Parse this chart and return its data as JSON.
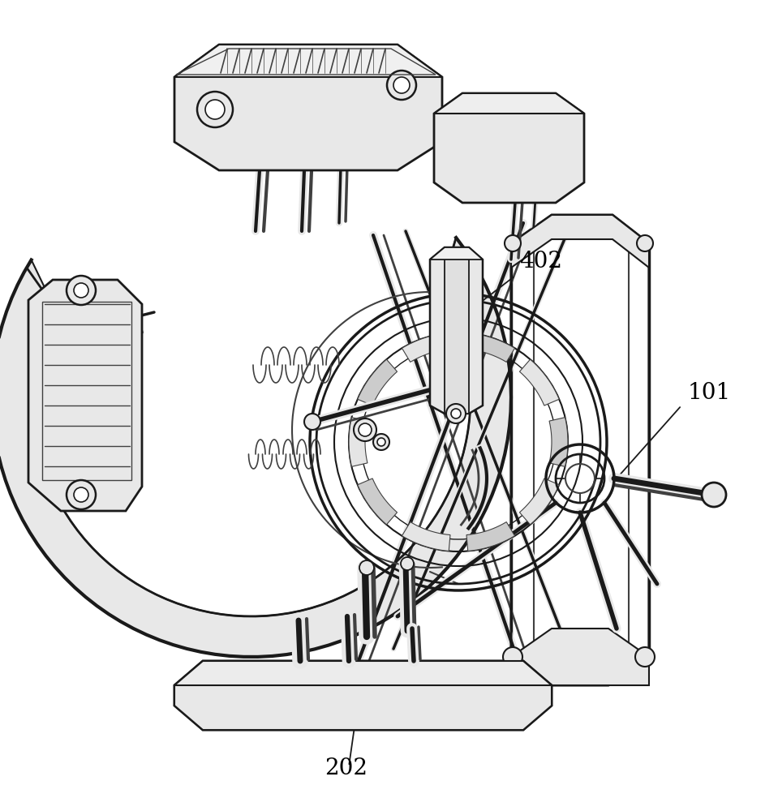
{
  "background_color": "#ffffff",
  "line_color": "#1a1a1a",
  "light_gray": "#d8d8d8",
  "mid_gray": "#b0b0b0",
  "dark_gray": "#404040",
  "shade_gray": "#e8e8e8",
  "label_402": "402",
  "label_101": "101",
  "label_202": "202",
  "label_fontsize": 20,
  "figsize": [
    9.59,
    10.0
  ],
  "dpi": 100
}
